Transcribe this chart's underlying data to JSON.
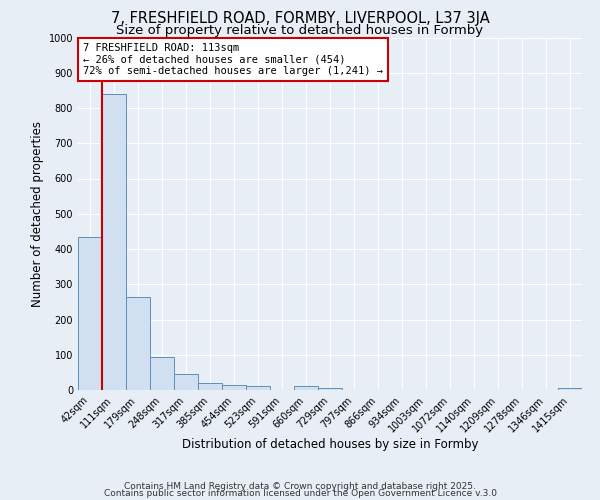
{
  "title1": "7, FRESHFIELD ROAD, FORMBY, LIVERPOOL, L37 3JA",
  "title2": "Size of property relative to detached houses in Formby",
  "xlabel": "Distribution of detached houses by size in Formby",
  "ylabel": "Number of detached properties",
  "categories": [
    "42sqm",
    "111sqm",
    "179sqm",
    "248sqm",
    "317sqm",
    "385sqm",
    "454sqm",
    "523sqm",
    "591sqm",
    "660sqm",
    "729sqm",
    "797sqm",
    "866sqm",
    "934sqm",
    "1003sqm",
    "1072sqm",
    "1140sqm",
    "1209sqm",
    "1278sqm",
    "1346sqm",
    "1415sqm"
  ],
  "values": [
    435,
    840,
    265,
    95,
    45,
    20,
    15,
    12,
    0,
    10,
    7,
    0,
    0,
    0,
    0,
    0,
    0,
    0,
    0,
    0,
    7
  ],
  "bar_color": "#d0e0f0",
  "bar_edge_color": "#6090b8",
  "vline_x": 0.5,
  "vline_color": "#cc0000",
  "ylim": [
    0,
    1000
  ],
  "yticks": [
    0,
    100,
    200,
    300,
    400,
    500,
    600,
    700,
    800,
    900,
    1000
  ],
  "annotation_line1": "7 FRESHFIELD ROAD: 113sqm",
  "annotation_line2": "← 26% of detached houses are smaller (454)",
  "annotation_line3": "72% of semi-detached houses are larger (1,241) →",
  "annotation_box_color": "#ffffff",
  "annotation_box_edge_color": "#cc0000",
  "footnote1": "Contains HM Land Registry data © Crown copyright and database right 2025.",
  "footnote2": "Contains public sector information licensed under the Open Government Licence v.3.0",
  "background_color": "#e8eef5",
  "grid_color": "#ffffff",
  "title1_fontsize": 10.5,
  "title2_fontsize": 9.5,
  "xlabel_fontsize": 8.5,
  "ylabel_fontsize": 8.5,
  "tick_fontsize": 7,
  "annotation_fontsize": 7.5,
  "footnote_fontsize": 6.5
}
